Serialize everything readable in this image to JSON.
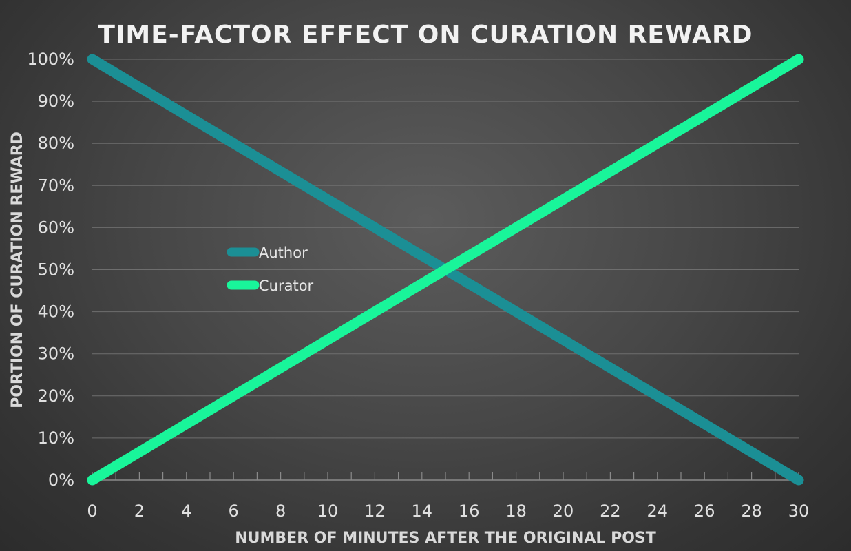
{
  "chart_data": {
    "type": "line",
    "title": "TIME-FACTOR EFFECT ON CURATION REWARD",
    "xlabel": "NUMBER OF MINUTES AFTER THE ORIGINAL POST",
    "ylabel": "PORTION OF CURATION REWARD",
    "xlim": [
      0,
      30
    ],
    "ylim": [
      0,
      1
    ],
    "x_ticks": [
      "0",
      "2",
      "4",
      "6",
      "8",
      "10",
      "12",
      "14",
      "16",
      "18",
      "20",
      "22",
      "24",
      "26",
      "28",
      "30"
    ],
    "x_tick_values": [
      0,
      2,
      4,
      6,
      8,
      10,
      12,
      14,
      16,
      18,
      20,
      22,
      24,
      26,
      28,
      30
    ],
    "y_ticks": [
      "0%",
      "10%",
      "20%",
      "30%",
      "40%",
      "50%",
      "60%",
      "70%",
      "80%",
      "90%",
      "100%"
    ],
    "y_tick_values": [
      0,
      0.1,
      0.2,
      0.3,
      0.4,
      0.5,
      0.6,
      0.7,
      0.8,
      0.9,
      1.0
    ],
    "grid": true,
    "legend_position": "center-left",
    "series": [
      {
        "name": "Author",
        "color": "#1b8f95",
        "x": [
          0,
          30
        ],
        "y": [
          1.0,
          0.0
        ]
      },
      {
        "name": "Curator",
        "color": "#19f59a",
        "x": [
          0,
          30
        ],
        "y": [
          0.0,
          1.0
        ]
      }
    ]
  }
}
